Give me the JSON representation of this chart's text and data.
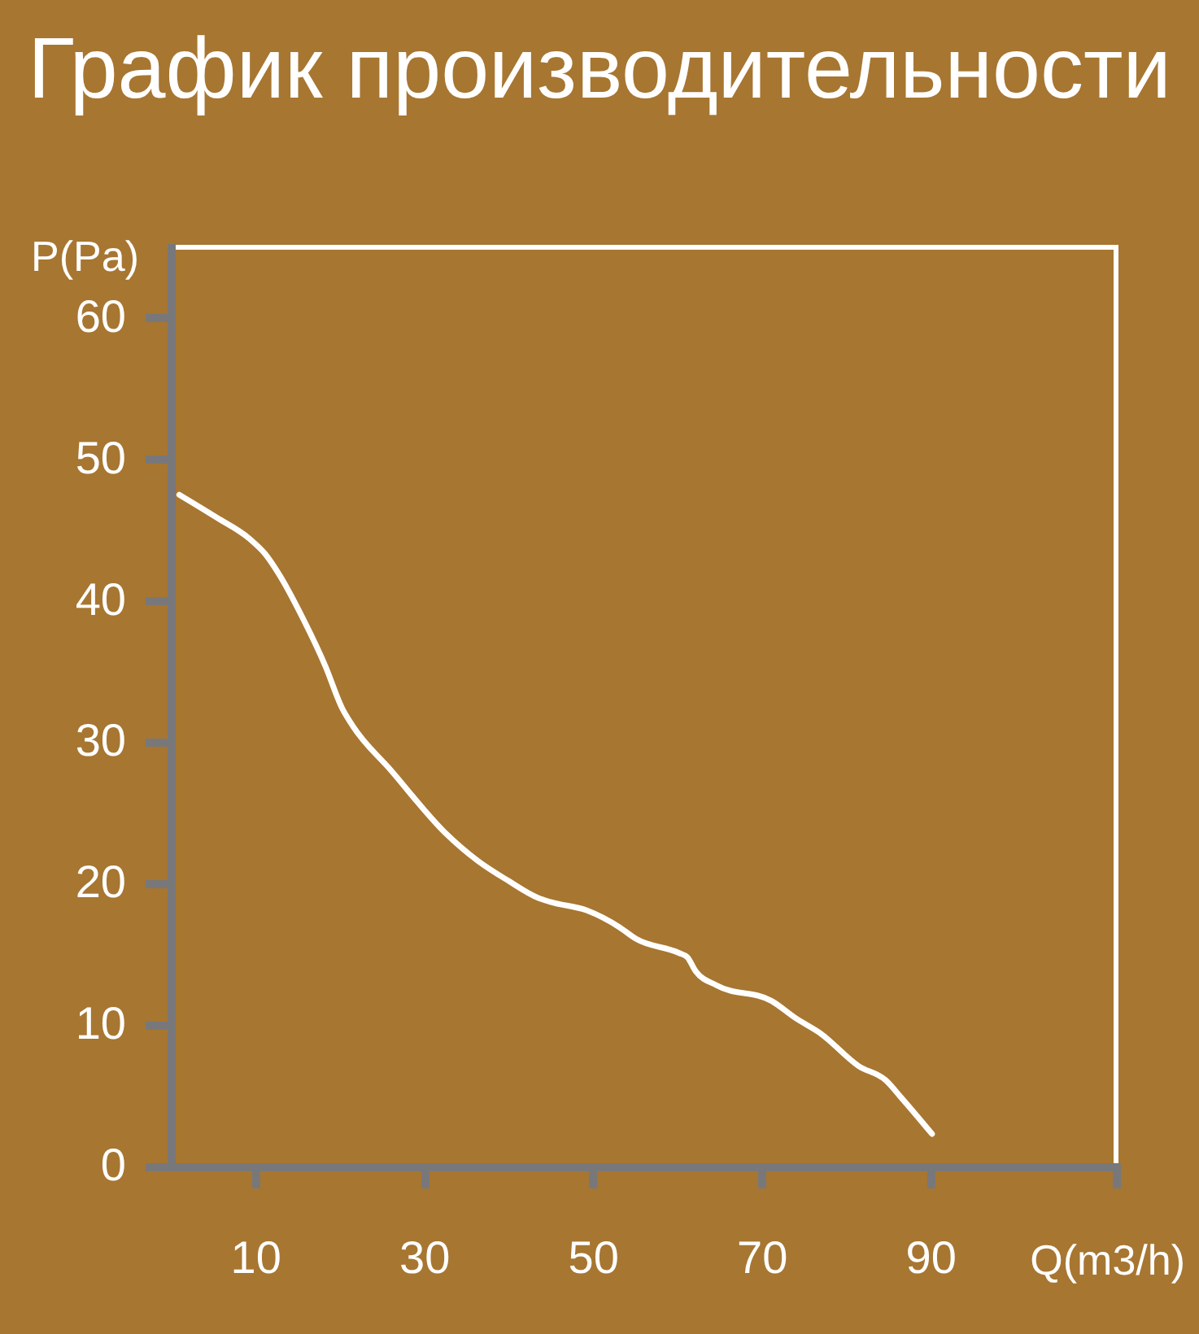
{
  "chart_data": {
    "type": "line",
    "title": "График производительности",
    "xlabel": "Q(m3/h)",
    "ylabel": "P(Pa)",
    "x": [
      1,
      5.4,
      9.3,
      11.2,
      12.8,
      15.7,
      18.3,
      20.3,
      21.5,
      26.1,
      32.5,
      36.4,
      40,
      43.5,
      45,
      49.3,
      53.2,
      55.1,
      60.2,
      61.2,
      62.2,
      64.7,
      71.2,
      74,
      77,
      81.5,
      84.7,
      86.5,
      90.2
    ],
    "series": [
      {
        "color": "#ffffff",
        "values": [
          47.5,
          45.9,
          44.4,
          43.3,
          41.9,
          38.7,
          35.4,
          32.4,
          31.2,
          28.0,
          23.6,
          21.6,
          20.2,
          19.0,
          18.7,
          18.1,
          16.9,
          16.1,
          15.1,
          14.8,
          13.8,
          12.8,
          11.7,
          10.5,
          9.4,
          7.1,
          6.1,
          4.9,
          2.3
        ]
      }
    ],
    "xlim": [
      0,
      112
    ],
    "ylim": [
      0,
      65
    ],
    "xticks": [
      10,
      30,
      50,
      70,
      90,
      {
        "value": 112,
        "label": null
      }
    ],
    "yticks": [
      0,
      10,
      20,
      30,
      40,
      50,
      60
    ],
    "line_style": "solid"
  }
}
